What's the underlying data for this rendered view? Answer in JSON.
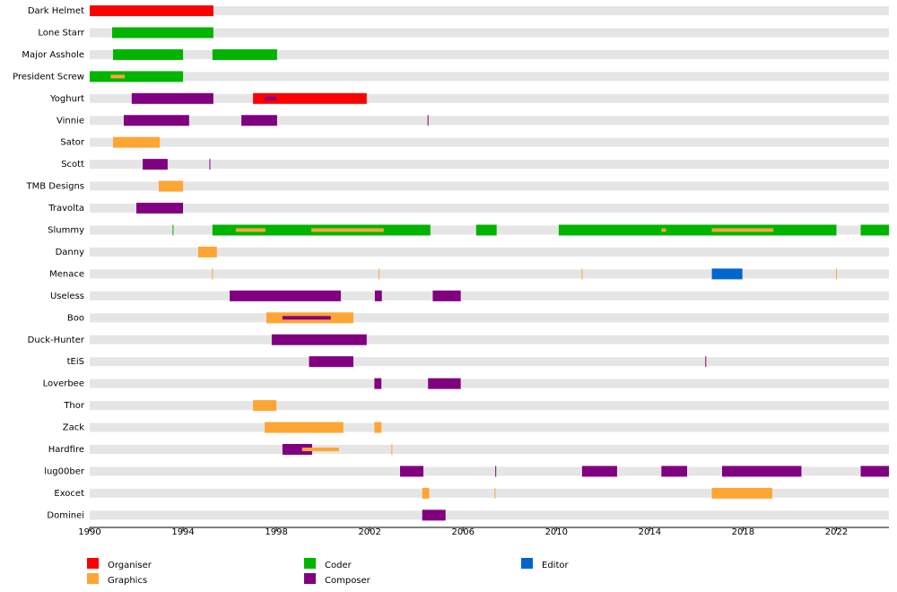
{
  "chart_data": {
    "type": "timeline",
    "roles": [
      {
        "name": "Organiser",
        "color": "#ff0000"
      },
      {
        "name": "Graphics",
        "color": "#ffa533"
      },
      {
        "name": "Coder",
        "color": "#00b400"
      },
      {
        "name": "Composer",
        "color": "#800080"
      },
      {
        "name": "Editor",
        "color": "#0066cc"
      }
    ],
    "xlim": [
      1990,
      2024.25
    ],
    "xticks": [
      1990,
      1994,
      1998,
      2002,
      2006,
      2010,
      2014,
      2018,
      2022
    ],
    "rows": [
      {
        "name": "Dark Helmet",
        "bars": [
          {
            "role": 0,
            "from": 1990,
            "to": 1995.3
          }
        ],
        "marks": []
      },
      {
        "name": "Lone Starr",
        "bars": [
          {
            "role": 2,
            "from": 1990.96,
            "to": 1995.3
          }
        ],
        "marks": []
      },
      {
        "name": "Major Asshole",
        "bars": [
          {
            "role": 2,
            "from": 1991,
            "to": 1994
          },
          {
            "role": 2,
            "from": 1995.26,
            "to": 1998.03
          }
        ],
        "marks": []
      },
      {
        "name": "President Screw",
        "bars": [
          {
            "role": 2,
            "from": 1990,
            "to": 1994
          },
          {
            "role": 1,
            "from": 1990.9,
            "to": 1991.5,
            "thin": true
          }
        ],
        "marks": []
      },
      {
        "name": "Yoghurt",
        "bars": [
          {
            "role": 3,
            "from": 1991.8,
            "to": 1995.3
          },
          {
            "role": 0,
            "from": 1997,
            "to": 2001.87
          },
          {
            "role": 3,
            "from": 1997.5,
            "to": 1998,
            "thin": true
          }
        ],
        "marks": []
      },
      {
        "name": "Vinnie",
        "bars": [
          {
            "role": 3,
            "from": 1991.46,
            "to": 1994.26
          },
          {
            "role": 3,
            "from": 1996.5,
            "to": 1998.03
          }
        ],
        "marks": [
          {
            "role": 3,
            "at": 2004.5
          }
        ]
      },
      {
        "name": "Sator",
        "bars": [
          {
            "role": 1,
            "from": 1991,
            "to": 1993
          }
        ],
        "marks": []
      },
      {
        "name": "Scott",
        "bars": [
          {
            "role": 3,
            "from": 1992.27,
            "to": 1993.34
          }
        ],
        "marks": [
          {
            "role": 3,
            "at": 1995.15
          }
        ]
      },
      {
        "name": "TMB Designs",
        "bars": [
          {
            "role": 1,
            "from": 1992.96,
            "to": 1994
          }
        ],
        "marks": []
      },
      {
        "name": "Travolta",
        "bars": [
          {
            "role": 3,
            "from": 1992,
            "to": 1994
          }
        ],
        "marks": []
      },
      {
        "name": "Slummy",
        "bars": [
          {
            "role": 2,
            "from": 1995.26,
            "to": 2004.6
          },
          {
            "role": 2,
            "from": 2006.56,
            "to": 2007.44
          },
          {
            "role": 2,
            "from": 2010.1,
            "to": 2022
          },
          {
            "role": 2,
            "from": 2023.04,
            "to": 2024.25
          },
          {
            "role": 1,
            "from": 1996.26,
            "to": 1997.53,
            "thin": true
          },
          {
            "role": 1,
            "from": 1999.5,
            "to": 2002.6,
            "thin": true
          },
          {
            "role": 1,
            "from": 2014.5,
            "to": 2014.7,
            "thin": true
          },
          {
            "role": 1,
            "from": 2016.66,
            "to": 2019.3,
            "thin": true
          }
        ],
        "marks": [
          {
            "role": 2,
            "at": 1993.57
          }
        ]
      },
      {
        "name": "Danny",
        "bars": [
          {
            "role": 1,
            "from": 1994.65,
            "to": 1995.45
          }
        ],
        "marks": []
      },
      {
        "name": "Menace",
        "bars": [
          {
            "role": 4,
            "from": 2016.66,
            "to": 2017.97
          }
        ],
        "marks": [
          {
            "role": 1,
            "at": 1995.26
          },
          {
            "role": 1,
            "at": 2002.4
          },
          {
            "role": 1,
            "at": 2011.1
          },
          {
            "role": 1,
            "at": 2022
          }
        ]
      },
      {
        "name": "Useless",
        "bars": [
          {
            "role": 3,
            "from": 1996,
            "to": 2000.76
          },
          {
            "role": 3,
            "from": 2002.22,
            "to": 2002.52
          },
          {
            "role": 3,
            "from": 2004.7,
            "to": 2005.9
          }
        ],
        "marks": []
      },
      {
        "name": "Boo",
        "bars": [
          {
            "role": 1,
            "from": 1997.57,
            "to": 2001.3
          },
          {
            "role": 3,
            "from": 1998.26,
            "to": 2000.33,
            "thin": true
          }
        ],
        "marks": []
      },
      {
        "name": "Duck-Hunter",
        "bars": [
          {
            "role": 3,
            "from": 1997.8,
            "to": 2001.87
          }
        ],
        "marks": []
      },
      {
        "name": "tEiS",
        "bars": [
          {
            "role": 3,
            "from": 1999.4,
            "to": 2001.3
          }
        ],
        "marks": [
          {
            "role": 3,
            "at": 2016.4
          }
        ]
      },
      {
        "name": "Loverbee",
        "bars": [
          {
            "role": 3,
            "from": 2002.2,
            "to": 2002.5
          },
          {
            "role": 3,
            "from": 2004.5,
            "to": 2005.9
          }
        ],
        "marks": []
      },
      {
        "name": "Thor",
        "bars": [
          {
            "role": 1,
            "from": 1997,
            "to": 1998
          }
        ],
        "marks": []
      },
      {
        "name": "Zack",
        "bars": [
          {
            "role": 1,
            "from": 1997.5,
            "to": 2000.87
          },
          {
            "role": 1,
            "from": 2002.2,
            "to": 2002.5
          }
        ],
        "marks": []
      },
      {
        "name": "Hardfire",
        "bars": [
          {
            "role": 3,
            "from": 1998.26,
            "to": 1999.53
          },
          {
            "role": 1,
            "from": 1999.1,
            "to": 2000.68,
            "thin": true
          }
        ],
        "marks": [
          {
            "role": 1,
            "at": 2002.95
          }
        ]
      },
      {
        "name": "lug00ber",
        "bars": [
          {
            "role": 3,
            "from": 2003.3,
            "to": 2004.3
          },
          {
            "role": 3,
            "from": 2011.1,
            "to": 2012.6
          },
          {
            "role": 3,
            "from": 2014.5,
            "to": 2015.6
          },
          {
            "role": 3,
            "from": 2017.1,
            "to": 2020.5
          },
          {
            "role": 3,
            "from": 2023.04,
            "to": 2024.25
          }
        ],
        "marks": [
          {
            "role": 3,
            "at": 2007.4
          }
        ]
      },
      {
        "name": "Exocet",
        "bars": [
          {
            "role": 1,
            "from": 2004.25,
            "to": 2004.55
          },
          {
            "role": 1,
            "from": 2016.66,
            "to": 2019.25
          }
        ],
        "marks": [
          {
            "role": 1,
            "at": 2007.37
          }
        ]
      },
      {
        "name": "Dominei",
        "bars": [
          {
            "role": 3,
            "from": 2004.25,
            "to": 2005.25
          }
        ],
        "marks": []
      }
    ]
  }
}
